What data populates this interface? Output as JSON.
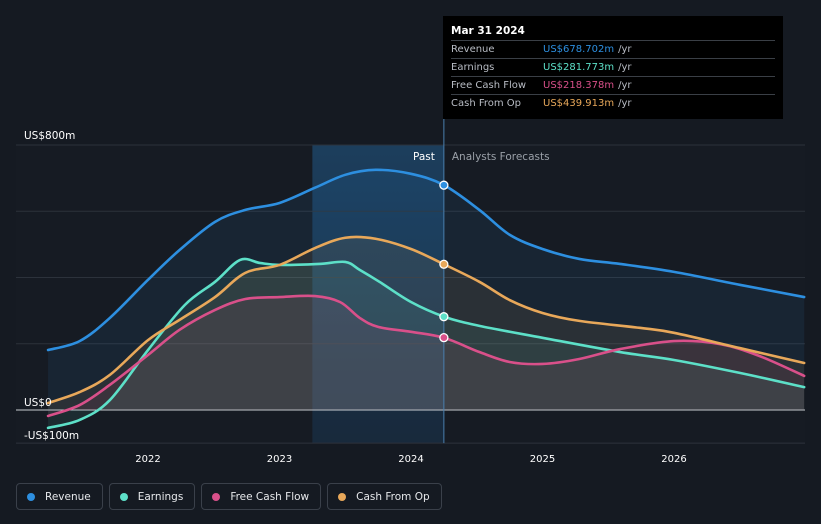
{
  "tooltip": {
    "date": "Mar 31 2024",
    "rows": [
      {
        "name": "Revenue",
        "value": "US$678.702m",
        "unit": "/yr",
        "color": "#2d8fe0"
      },
      {
        "name": "Earnings",
        "value": "US$281.773m",
        "unit": "/yr",
        "color": "#5de0c8"
      },
      {
        "name": "Free Cash Flow",
        "value": "US$218.378m",
        "unit": "/yr",
        "color": "#d9508a"
      },
      {
        "name": "Cash From Op",
        "value": "US$439.913m",
        "unit": "/yr",
        "color": "#e8a85a"
      }
    ]
  },
  "legend": [
    {
      "label": "Revenue",
      "color": "#2d8fe0"
    },
    {
      "label": "Earnings",
      "color": "#5de0c8"
    },
    {
      "label": "Free Cash Flow",
      "color": "#d9508a"
    },
    {
      "label": "Cash From Op",
      "color": "#e8a85a"
    }
  ],
  "chart_data": {
    "type": "area",
    "title": "",
    "xlabel": "",
    "ylabel": "",
    "ylim": [
      -100,
      800
    ],
    "xlim": [
      2021.0,
      2027.0
    ],
    "y_tick_labels": [
      {
        "value": 800,
        "label": "US$800m"
      },
      {
        "value": 0,
        "label": "US$0"
      },
      {
        "value": -100,
        "label": "-US$100m"
      }
    ],
    "y_gridlines": [
      800,
      600,
      400,
      200,
      0,
      -100
    ],
    "x_tick_labels": [
      {
        "value": 2022,
        "label": "2022"
      },
      {
        "value": 2023,
        "label": "2023"
      },
      {
        "value": 2024,
        "label": "2024"
      },
      {
        "value": 2025,
        "label": "2025"
      },
      {
        "value": 2026,
        "label": "2026"
      }
    ],
    "grid": true,
    "legend_position": "bottom-left",
    "divider_x": 2024.25,
    "highlight_range": [
      2023.25,
      2024.25
    ],
    "past_label": "Past",
    "forecast_label": "Analysts Forecasts",
    "series": [
      {
        "name": "Revenue",
        "color": "#2d8fe0",
        "points": [
          [
            2021.24,
            181
          ],
          [
            2021.48,
            208
          ],
          [
            2021.71,
            278
          ],
          [
            2022.0,
            393
          ],
          [
            2022.24,
            483
          ],
          [
            2022.51,
            568
          ],
          [
            2022.74,
            604
          ],
          [
            2023.0,
            625
          ],
          [
            2023.27,
            671
          ],
          [
            2023.5,
            710
          ],
          [
            2023.73,
            725
          ],
          [
            2024.0,
            713
          ],
          [
            2024.25,
            679
          ],
          [
            2024.52,
            604
          ],
          [
            2024.75,
            529
          ],
          [
            2025.0,
            486
          ],
          [
            2025.28,
            456
          ],
          [
            2025.59,
            441
          ],
          [
            2026.0,
            417
          ],
          [
            2026.5,
            378
          ],
          [
            2026.99,
            341
          ]
        ],
        "marker": [
          2024.25,
          678.702
        ]
      },
      {
        "name": "Earnings",
        "color": "#5de0c8",
        "points": [
          [
            2021.24,
            -54
          ],
          [
            2021.48,
            -30
          ],
          [
            2021.71,
            30
          ],
          [
            2022.0,
            181
          ],
          [
            2022.28,
            317
          ],
          [
            2022.51,
            387
          ],
          [
            2022.7,
            453
          ],
          [
            2022.85,
            444
          ],
          [
            2023.0,
            438
          ],
          [
            2023.3,
            441
          ],
          [
            2023.5,
            447
          ],
          [
            2023.61,
            423
          ],
          [
            2023.76,
            387
          ],
          [
            2024.0,
            326
          ],
          [
            2024.25,
            282
          ],
          [
            2024.52,
            254
          ],
          [
            2025.0,
            218
          ],
          [
            2025.59,
            175
          ],
          [
            2026.0,
            151
          ],
          [
            2026.5,
            112
          ],
          [
            2026.99,
            69
          ]
        ],
        "marker": [
          2024.25,
          281.773
        ]
      },
      {
        "name": "Free Cash Flow",
        "color": "#d9508a",
        "points": [
          [
            2021.24,
            -18
          ],
          [
            2021.48,
            15
          ],
          [
            2021.71,
            76
          ],
          [
            2022.0,
            166
          ],
          [
            2022.24,
            242
          ],
          [
            2022.51,
            302
          ],
          [
            2022.74,
            335
          ],
          [
            2023.0,
            341
          ],
          [
            2023.27,
            344
          ],
          [
            2023.46,
            326
          ],
          [
            2023.61,
            278
          ],
          [
            2023.75,
            251
          ],
          [
            2024.0,
            236
          ],
          [
            2024.25,
            218
          ],
          [
            2024.52,
            175
          ],
          [
            2024.75,
            145
          ],
          [
            2025.0,
            139
          ],
          [
            2025.28,
            154
          ],
          [
            2025.59,
            184
          ],
          [
            2026.0,
            208
          ],
          [
            2026.35,
            199
          ],
          [
            2026.65,
            163
          ],
          [
            2026.99,
            103
          ]
        ],
        "marker": [
          2024.25,
          218.378
        ]
      },
      {
        "name": "Cash From Op",
        "color": "#e8a85a",
        "points": [
          [
            2021.24,
            21
          ],
          [
            2021.48,
            54
          ],
          [
            2021.71,
            106
          ],
          [
            2022.0,
            211
          ],
          [
            2022.24,
            272
          ],
          [
            2022.51,
            341
          ],
          [
            2022.74,
            414
          ],
          [
            2023.0,
            438
          ],
          [
            2023.27,
            489
          ],
          [
            2023.5,
            520
          ],
          [
            2023.73,
            517
          ],
          [
            2024.0,
            486
          ],
          [
            2024.25,
            440
          ],
          [
            2024.52,
            387
          ],
          [
            2024.75,
            332
          ],
          [
            2025.0,
            293
          ],
          [
            2025.28,
            269
          ],
          [
            2025.74,
            248
          ],
          [
            2026.0,
            233
          ],
          [
            2026.5,
            187
          ],
          [
            2026.99,
            142
          ]
        ],
        "marker": [
          2024.25,
          439.913
        ]
      }
    ]
  }
}
